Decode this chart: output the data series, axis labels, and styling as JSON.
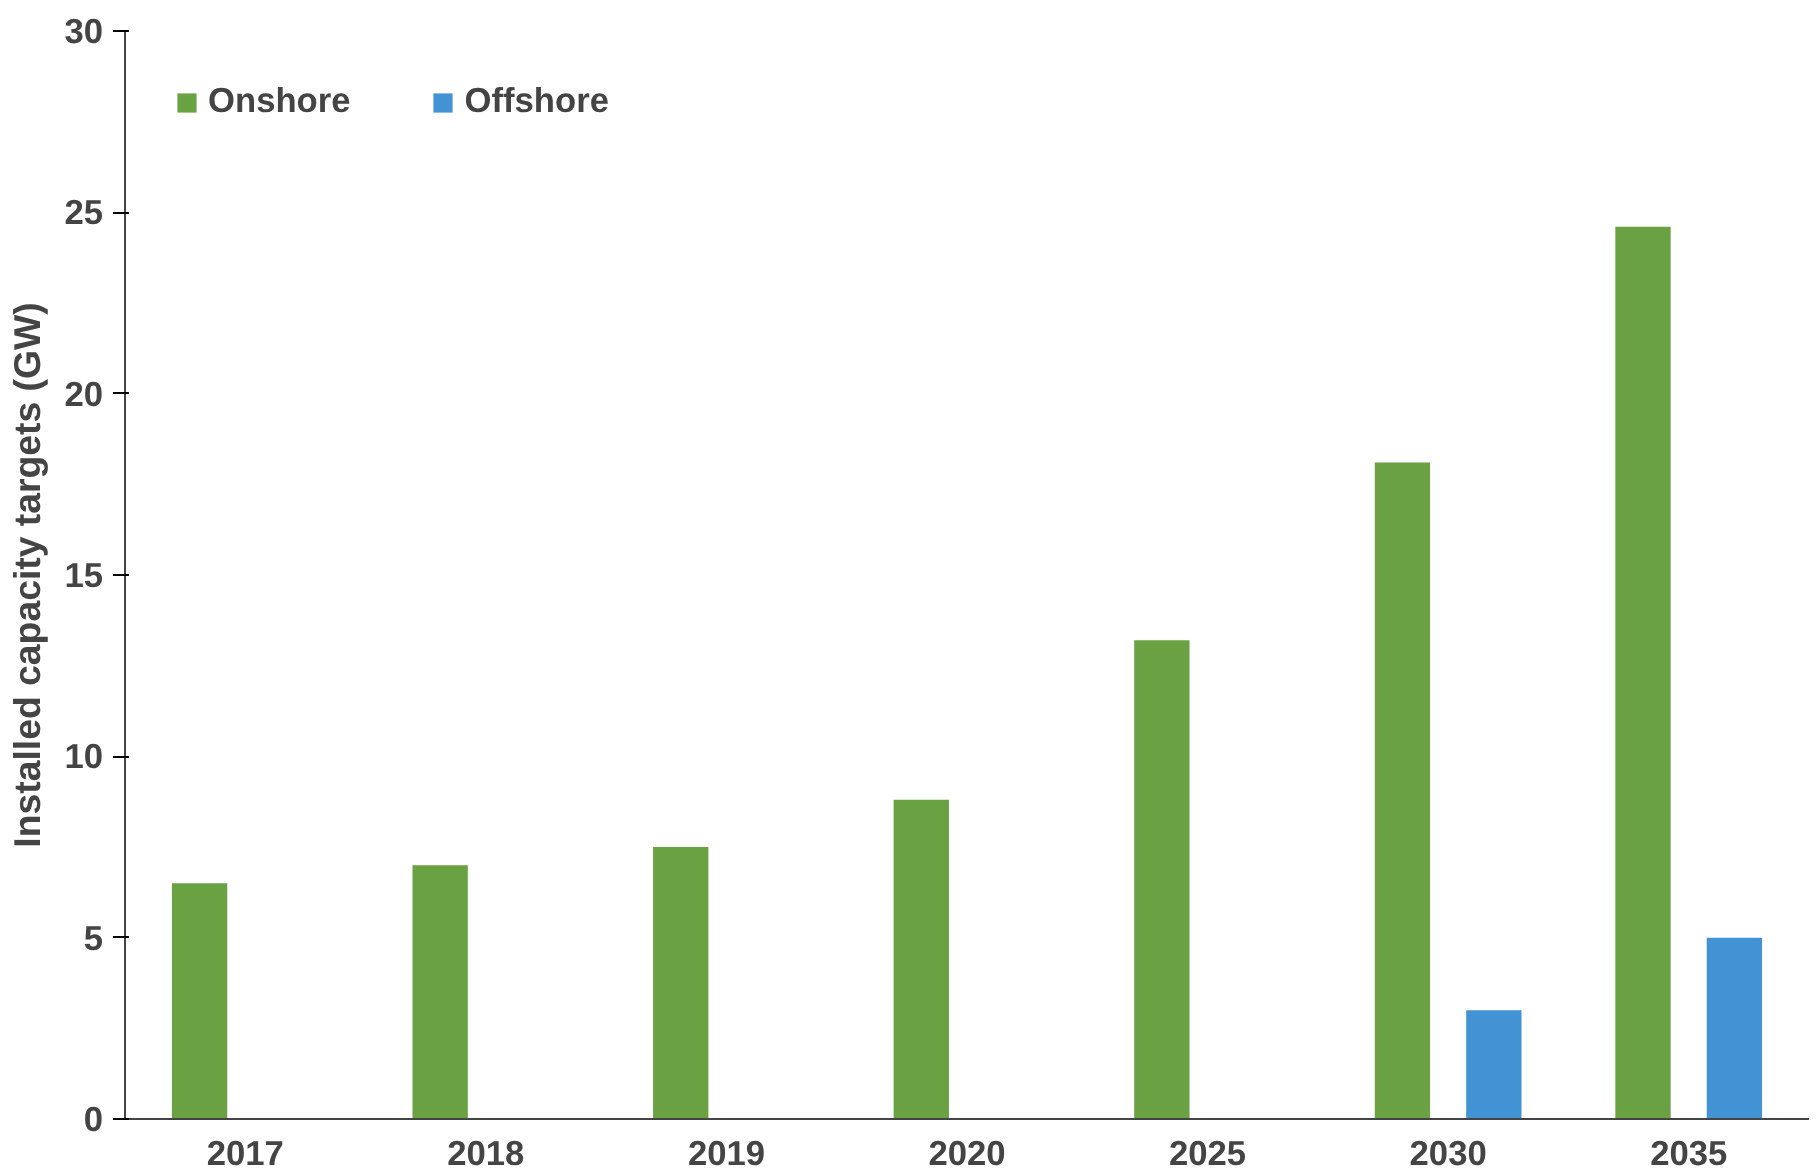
{
  "chart_data": {
    "type": "bar",
    "ylabel": "Installed capacity targets (GW)",
    "categories": [
      "2017",
      "2018",
      "2019",
      "2020",
      "2025",
      "2030",
      "2035"
    ],
    "series": [
      {
        "name": "Onshore",
        "color": "#6aa143",
        "values": [
          6.5,
          7.0,
          7.5,
          8.8,
          13.2,
          18.1,
          24.6
        ]
      },
      {
        "name": "Offshore",
        "color": "#4393d4",
        "values": [
          null,
          null,
          null,
          null,
          null,
          3.0,
          5.0
        ]
      }
    ],
    "ylim": [
      0,
      30
    ],
    "yticks": [
      0,
      5,
      10,
      15,
      20,
      25,
      30
    ],
    "grid": false,
    "legend": "top left"
  }
}
